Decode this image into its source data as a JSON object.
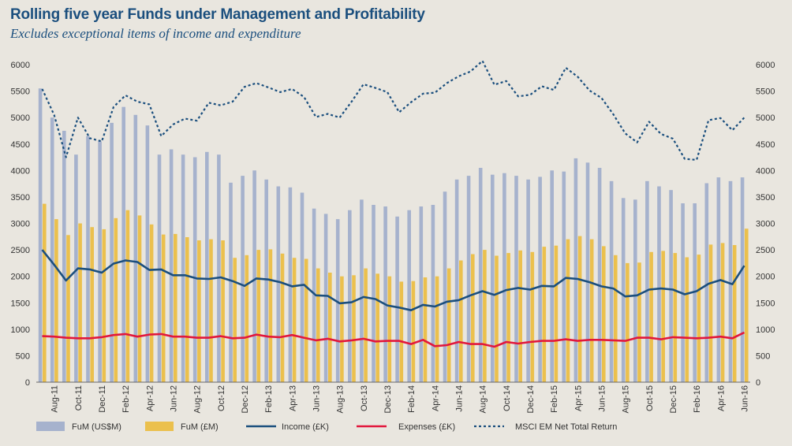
{
  "title": "Rolling five year Funds under Management and Profitability",
  "subtitle": "Excludes exceptional items of income and expenditure",
  "colors": {
    "fum_usd": "#a6b2cd",
    "fum_gbp": "#ebc04d",
    "income": "#1b4f7e",
    "expenses": "#e2173c",
    "msci": "#1b4f7e",
    "background": "#e9e6df"
  },
  "chart_data": {
    "type": "bar",
    "combo": "bar+line",
    "ylim": [
      0,
      6000
    ],
    "yticks": [
      0,
      500,
      1000,
      1500,
      2000,
      2500,
      3000,
      3500,
      4000,
      4500,
      5000,
      5500,
      6000
    ],
    "y2lim": [
      0,
      6000
    ],
    "y2ticks": [
      0,
      500,
      1000,
      1500,
      2000,
      2500,
      3000,
      3500,
      4000,
      4500,
      5000,
      5500,
      6000
    ],
    "grid": false,
    "legend": "bottom",
    "categories": [
      "Jul-11",
      "Aug-11",
      "Sep-11",
      "Oct-11",
      "Nov-11",
      "Dec-11",
      "Jan-12",
      "Feb-12",
      "Mar-12",
      "Apr-12",
      "May-12",
      "Jun-12",
      "Jul-12",
      "Aug-12",
      "Sep-12",
      "Oct-12",
      "Nov-12",
      "Dec-12",
      "Jan-13",
      "Feb-13",
      "Mar-13",
      "Apr-13",
      "May-13",
      "Jun-13",
      "Jul-13",
      "Aug-13",
      "Sep-13",
      "Oct-13",
      "Nov-13",
      "Dec-13",
      "Jan-14",
      "Feb-14",
      "Mar-14",
      "Apr-14",
      "May-14",
      "Jun-14",
      "Jul-14",
      "Aug-14",
      "Sep-14",
      "Oct-14",
      "Nov-14",
      "Dec-14",
      "Jan-15",
      "Feb-15",
      "Mar-15",
      "Apr-15",
      "May-15",
      "Jun-15",
      "Jul-15",
      "Aug-15",
      "Sep-15",
      "Oct-15",
      "Nov-15",
      "Dec-15",
      "Jan-16",
      "Feb-16",
      "Mar-16",
      "Apr-16",
      "May-16",
      "Jun-16"
    ],
    "xtick_labels": [
      "Aug-11",
      "Oct-11",
      "Dec-11",
      "Feb-12",
      "Apr-12",
      "Jun-12",
      "Aug-12",
      "Oct-12",
      "Dec-12",
      "Feb-13",
      "Apr-13",
      "Jun-13",
      "Aug-13",
      "Oct-13",
      "Dec-13",
      "Feb-14",
      "Apr-14",
      "Jun-14",
      "Aug-14",
      "Oct-14",
      "Dec-14",
      "Feb-15",
      "Apr-15",
      "Jun-15",
      "Aug-15",
      "Oct-15",
      "Dec-15",
      "Feb-16",
      "Apr-16",
      "Jun-16"
    ],
    "series": [
      {
        "name": "FuM (US$M)",
        "kind": "bar",
        "values": [
          5550,
          5000,
          4750,
          4300,
          4650,
          4550,
          4900,
          5200,
          5050,
          4850,
          4300,
          4400,
          4300,
          4250,
          4350,
          4300,
          3770,
          3900,
          4000,
          3830,
          3700,
          3680,
          3580,
          3280,
          3180,
          3080,
          3250,
          3450,
          3350,
          3320,
          3130,
          3250,
          3320,
          3350,
          3600,
          3830,
          3900,
          4050,
          3920,
          3950,
          3900,
          3830,
          3880,
          4000,
          3980,
          4230,
          4150,
          4050,
          3800,
          3480,
          3450,
          3800,
          3700,
          3630,
          3380,
          3380,
          3760,
          3870,
          3800,
          3870
        ]
      },
      {
        "name": "FuM (£M)",
        "kind": "bar",
        "values": [
          3370,
          3080,
          2780,
          3000,
          2930,
          2890,
          3100,
          3250,
          3150,
          2980,
          2790,
          2800,
          2740,
          2680,
          2700,
          2680,
          2350,
          2400,
          2500,
          2510,
          2430,
          2350,
          2330,
          2150,
          2070,
          2000,
          2020,
          2150,
          2050,
          2000,
          1900,
          1910,
          1980,
          2000,
          2150,
          2300,
          2420,
          2500,
          2390,
          2440,
          2490,
          2460,
          2560,
          2580,
          2700,
          2760,
          2700,
          2570,
          2400,
          2250,
          2260,
          2460,
          2480,
          2440,
          2360,
          2410,
          2600,
          2630,
          2590,
          2900
        ]
      },
      {
        "name": "Income (£K)",
        "kind": "line",
        "values": [
          2500,
          2220,
          1920,
          2150,
          2130,
          2070,
          2240,
          2300,
          2270,
          2120,
          2130,
          2020,
          2020,
          1960,
          1950,
          1980,
          1910,
          1820,
          1960,
          1940,
          1890,
          1810,
          1840,
          1640,
          1630,
          1490,
          1510,
          1610,
          1570,
          1450,
          1410,
          1360,
          1460,
          1430,
          1520,
          1550,
          1640,
          1720,
          1650,
          1740,
          1780,
          1750,
          1820,
          1810,
          1970,
          1950,
          1890,
          1810,
          1770,
          1620,
          1640,
          1750,
          1770,
          1750,
          1660,
          1720,
          1860,
          1930,
          1850,
          2200
        ]
      },
      {
        "name": "Expenses (£K)",
        "kind": "line",
        "values": [
          870,
          860,
          840,
          830,
          830,
          850,
          890,
          910,
          860,
          900,
          910,
          860,
          860,
          840,
          840,
          870,
          830,
          840,
          900,
          860,
          850,
          890,
          840,
          790,
          820,
          770,
          790,
          820,
          770,
          780,
          780,
          720,
          800,
          680,
          700,
          760,
          720,
          720,
          670,
          760,
          730,
          760,
          780,
          780,
          810,
          780,
          800,
          800,
          790,
          780,
          840,
          840,
          810,
          850,
          840,
          830,
          840,
          860,
          830,
          940
        ]
      },
      {
        "name": "MSCI EM Net Total Return",
        "kind": "line",
        "style": "dotted",
        "values": [
          5540,
          5050,
          4250,
          5000,
          4610,
          4550,
          5200,
          5420,
          5300,
          5250,
          4650,
          4870,
          4980,
          4940,
          5280,
          5230,
          5300,
          5580,
          5650,
          5570,
          5480,
          5540,
          5390,
          5010,
          5070,
          5000,
          5300,
          5630,
          5560,
          5480,
          5100,
          5290,
          5450,
          5470,
          5650,
          5780,
          5870,
          6070,
          5620,
          5690,
          5400,
          5430,
          5590,
          5520,
          5940,
          5770,
          5510,
          5370,
          5060,
          4700,
          4530,
          4920,
          4690,
          4600,
          4220,
          4200,
          4950,
          4990,
          4760,
          5000
        ]
      }
    ]
  }
}
